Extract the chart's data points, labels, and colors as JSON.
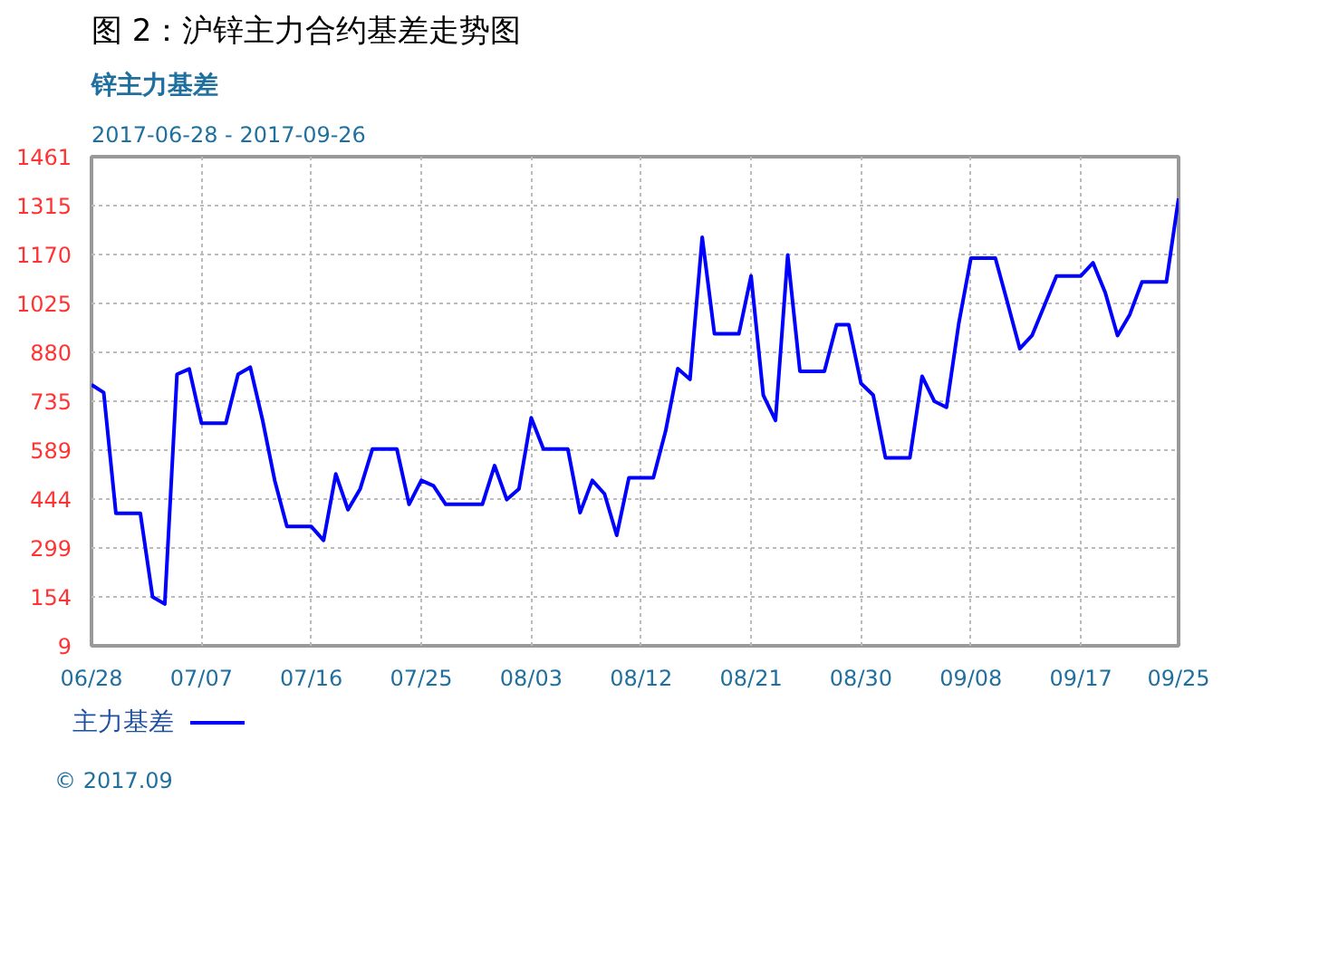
{
  "chart_data": {
    "type": "line",
    "title": "图 2：沪锌主力合约基差走势图",
    "subtitle": "锌主力基差",
    "annotations": [
      "2017-06-28 - 2017-09-26",
      "© 2017.09"
    ],
    "x": [
      "2017-06-28",
      "2017-06-29",
      "2017-06-30",
      "2017-07-02",
      "2017-07-03",
      "2017-07-04",
      "2017-07-05",
      "2017-07-06",
      "2017-07-07",
      "2017-07-09",
      "2017-07-10",
      "2017-07-11",
      "2017-07-12",
      "2017-07-13",
      "2017-07-14",
      "2017-07-16",
      "2017-07-17",
      "2017-07-18",
      "2017-07-19",
      "2017-07-20",
      "2017-07-21",
      "2017-07-23",
      "2017-07-24",
      "2017-07-25",
      "2017-07-26",
      "2017-07-27",
      "2017-07-30",
      "2017-07-31",
      "2017-08-01",
      "2017-08-02",
      "2017-08-03",
      "2017-08-04",
      "2017-08-06",
      "2017-08-07",
      "2017-08-08",
      "2017-08-09",
      "2017-08-10",
      "2017-08-11",
      "2017-08-13",
      "2017-08-14",
      "2017-08-15",
      "2017-08-16",
      "2017-08-17",
      "2017-08-18",
      "2017-08-20",
      "2017-08-21",
      "2017-08-22",
      "2017-08-23",
      "2017-08-24",
      "2017-08-25",
      "2017-08-27",
      "2017-08-28",
      "2017-08-29",
      "2017-08-30",
      "2017-08-31",
      "2017-09-01",
      "2017-09-03",
      "2017-09-04",
      "2017-09-05",
      "2017-09-06",
      "2017-09-07",
      "2017-09-08",
      "2017-09-10",
      "2017-09-11",
      "2017-09-12",
      "2017-09-13",
      "2017-09-14",
      "2017-09-15",
      "2017-09-17",
      "2017-09-18",
      "2017-09-19",
      "2017-09-20",
      "2017-09-21",
      "2017-09-22",
      "2017-09-24",
      "2017-09-25"
    ],
    "series": [
      {
        "name": "主力基差",
        "color": "#0000ff",
        "values": [
          784,
          761,
          402,
          402,
          154,
          133,
          815,
          831,
          670,
          670,
          815,
          836,
          680,
          500,
          363,
          363,
          322,
          519,
          413,
          475,
          593,
          593,
          429,
          500,
          484,
          429,
          429,
          544,
          443,
          475,
          686,
          593,
          593,
          404,
          500,
          460,
          337,
          508,
          508,
          646,
          832,
          800,
          1222,
          935,
          935,
          1107,
          753,
          678,
          1169,
          824,
          824,
          962,
          962,
          788,
          753,
          567,
          567,
          809,
          735,
          717,
          965,
          1160,
          1160,
          1027,
          891,
          930,
          1018,
          1107,
          1107,
          1146,
          1057,
          930,
          992,
          1089,
          1089,
          1337
        ]
      }
    ],
    "xlim": [
      "2017-06-28",
      "2017-09-25"
    ],
    "xticks": [
      {
        "value": "2017-06-28",
        "label": "06/28"
      },
      {
        "value": "2017-07-07",
        "label": "07/07"
      },
      {
        "value": "2017-07-16",
        "label": "07/16"
      },
      {
        "value": "2017-07-25",
        "label": "07/25"
      },
      {
        "value": "2017-08-03",
        "label": "08/03"
      },
      {
        "value": "2017-08-12",
        "label": "08/12"
      },
      {
        "value": "2017-08-21",
        "label": "08/21"
      },
      {
        "value": "2017-08-30",
        "label": "08/30"
      },
      {
        "value": "2017-09-08",
        "label": "09/08"
      },
      {
        "value": "2017-09-17",
        "label": "09/17"
      },
      {
        "value": "2017-09-25",
        "label": "09/25"
      }
    ],
    "ylim": [
      9,
      1461
    ],
    "yticks": [
      9,
      154,
      299,
      444,
      589,
      735,
      880,
      1025,
      1170,
      1315,
      1461
    ],
    "grid": true,
    "legend": "bottom left",
    "line_style": "solid"
  }
}
